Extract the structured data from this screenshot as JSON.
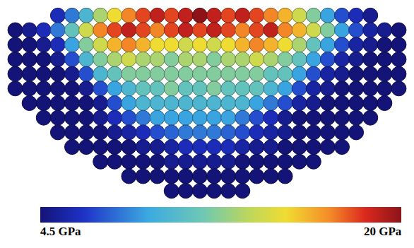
{
  "chart_data": {
    "type": "bubble",
    "cells": [
      [
        null,
        null,
        null,
        6,
        8,
        10,
        13,
        15,
        17,
        18,
        19,
        18,
        19,
        20,
        19,
        18,
        19,
        18,
        17,
        16,
        14,
        12,
        9,
        7,
        6,
        5,
        null,
        null
      ],
      [
        4.5,
        5,
        6,
        8,
        11,
        14,
        17,
        18,
        19,
        18,
        17,
        18,
        19,
        18,
        19,
        18,
        17,
        18,
        19,
        17,
        16,
        14,
        12,
        9,
        7,
        5.5,
        5,
        4.5
      ],
      [
        4.5,
        4.5,
        5,
        6,
        9,
        12,
        14,
        16,
        17,
        16,
        15,
        15,
        14,
        15,
        14,
        15,
        16,
        17,
        16,
        15,
        13,
        11,
        9,
        7,
        5.5,
        5,
        4.5,
        4.5
      ],
      [
        4.5,
        4.5,
        4.5,
        5,
        7,
        10,
        12,
        13,
        14,
        13,
        13,
        12,
        13,
        13,
        12,
        13,
        13,
        14,
        13,
        12,
        11,
        9,
        7,
        5.5,
        5,
        4.5,
        4.5,
        4.5
      ],
      [
        4.5,
        4.5,
        4.5,
        4.5,
        5,
        7,
        10,
        11,
        12,
        12,
        12,
        12,
        12,
        12,
        12,
        12,
        12,
        12,
        11,
        11,
        9,
        7,
        5.5,
        5,
        4.5,
        4.5,
        4.5,
        4.5
      ],
      [
        4.5,
        4.5,
        4.5,
        4.5,
        4.5,
        5,
        7,
        9,
        10,
        11,
        11,
        12,
        11,
        11,
        12,
        11,
        11,
        11,
        10,
        9,
        7,
        5.5,
        5,
        4.5,
        4.5,
        4.5,
        4.5,
        4.5
      ],
      [
        null,
        4.5,
        4.5,
        4.5,
        4.5,
        4.5,
        5,
        7,
        9,
        10,
        10,
        10,
        10,
        10,
        10,
        10,
        10,
        9,
        8,
        7,
        5.5,
        5,
        4.5,
        4.5,
        4.5,
        4.5,
        4.5,
        null
      ],
      [
        null,
        null,
        4.5,
        4.5,
        4.5,
        4.5,
        5,
        6,
        7,
        8,
        9,
        9,
        9,
        9,
        9,
        9,
        8,
        7,
        6,
        5,
        4.5,
        4.5,
        4.5,
        4.5,
        4.5,
        4.5,
        null,
        null
      ],
      [
        null,
        null,
        null,
        4.5,
        4.5,
        4.5,
        4.5,
        5,
        5.5,
        6,
        7,
        7.5,
        8,
        8,
        8,
        7.5,
        7,
        6,
        5.5,
        5,
        4.5,
        4.5,
        4.5,
        4.5,
        4.5,
        null,
        null,
        null
      ],
      [
        null,
        null,
        null,
        null,
        4.5,
        4.5,
        4.5,
        4.5,
        4.5,
        5,
        5,
        5.5,
        6,
        6,
        6,
        6,
        5.5,
        5,
        5,
        4.5,
        4.5,
        4.5,
        4.5,
        4.5,
        null,
        null,
        null,
        null
      ],
      [
        null,
        null,
        null,
        null,
        null,
        null,
        4.5,
        4.5,
        4.5,
        4.5,
        4.5,
        5,
        5,
        5,
        5,
        5,
        4.5,
        4.5,
        4.5,
        4.5,
        4.5,
        4.5,
        null,
        null,
        null,
        null,
        null,
        null
      ],
      [
        null,
        null,
        null,
        null,
        null,
        null,
        null,
        null,
        4.5,
        4.5,
        4.5,
        4.5,
        4.5,
        4.5,
        4.5,
        4.5,
        4.5,
        4.5,
        4.5,
        4.5,
        null,
        null,
        null,
        null,
        null,
        null,
        null,
        null
      ],
      [
        null,
        null,
        null,
        null,
        null,
        null,
        null,
        null,
        null,
        null,
        null,
        4.5,
        4.5,
        4.5,
        4.5,
        4.5,
        4.5,
        null,
        null,
        null,
        null,
        null,
        null,
        null,
        null,
        null,
        null,
        null
      ]
    ],
    "colorbar": {
      "range": [
        4.5,
        20
      ],
      "ticks": [
        {
          "value": 4.5,
          "label": "4.5 GPa"
        },
        {
          "value": 20,
          "label": "20 GPa"
        }
      ]
    },
    "tick_labels": false,
    "grid": false
  }
}
